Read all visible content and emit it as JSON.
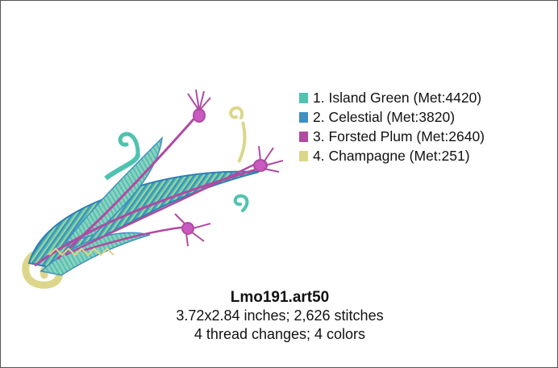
{
  "legend": [
    {
      "text": "1.  Island Green (Met:4420)",
      "color": "#4fc2b0"
    },
    {
      "text": "2.  Celestial (Met:3820)",
      "color": "#3f8fc0"
    },
    {
      "text": "3.  Forsted Plum (Met:2640)",
      "color": "#b04aa2"
    },
    {
      "text": "4.  Champagne (Met:251)",
      "color": "#dcd68a"
    }
  ],
  "info": {
    "title": "Lmo191.art50",
    "size_line": "3.72x2.84 inches; 2,626 stitches",
    "colors_line": "4 thread changes; 4 colors"
  }
}
